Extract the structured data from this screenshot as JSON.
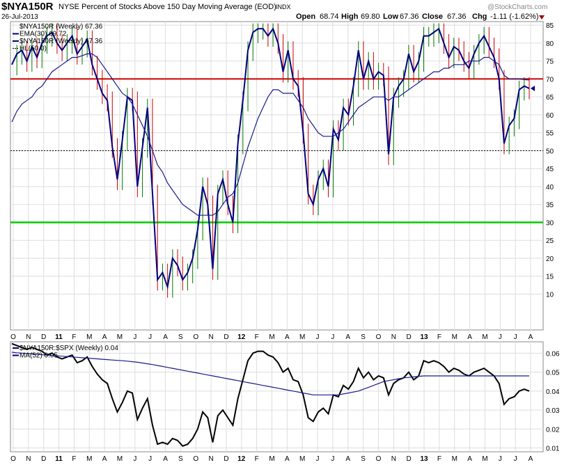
{
  "header": {
    "symbol": "$NYA150R",
    "description": "NYSE Percent of Stocks Above 150 Day Moving Average (EOD)",
    "exchange": "INDX",
    "date": "26-Jul-2013",
    "open_label": "Open",
    "open": "68.74",
    "high_label": "High",
    "high": "69.80",
    "low_label": "Low",
    "low": "67.36",
    "close_label": "Close",
    "close": "67.36",
    "chg_label": "Chg",
    "chg": "-1.11 (-1.62%)",
    "watermark": "@StockCharts.com"
  },
  "colors": {
    "price": "#000080",
    "ema": "#1a1a8c",
    "down_bar": "#cc0000",
    "up_bar": "#007700",
    "hline_red": "#cc0000",
    "hline_green": "#00cc00",
    "grid": "#dddddd",
    "ratio": "#000000"
  },
  "chart_data": [
    {
      "type": "line",
      "legend": [
        {
          "label": "$NYA150R (Weekly) 67.36",
          "style": "none"
        },
        {
          "label": "EMA(30) 69.72",
          "style": "line"
        },
        {
          "label": "$NYA150R (Weekly) 67.36",
          "style": "line"
        },
        {
          "label": "HL(50.0)",
          "style": "dotted"
        }
      ],
      "ylim": [
        0,
        86
      ],
      "yticks": [
        10,
        15,
        20,
        25,
        30,
        35,
        40,
        45,
        50,
        55,
        60,
        65,
        70,
        75,
        80,
        85
      ],
      "xlabels": [
        "O",
        "N",
        "D",
        "11",
        "F",
        "M",
        "A",
        "M",
        "J",
        "J",
        "A",
        "S",
        "O",
        "N",
        "D",
        "12",
        "F",
        "M",
        "A",
        "M",
        "J",
        "J",
        "A",
        "S",
        "O",
        "N",
        "D",
        "13",
        "F",
        "M",
        "A",
        "M",
        "J",
        "J",
        "A"
      ],
      "hlines": [
        {
          "value": 70,
          "color": "red"
        },
        {
          "value": 30,
          "color": "green"
        },
        {
          "value": 50,
          "color": "black-dotted"
        }
      ],
      "series": [
        {
          "name": "$NYA150R (Weekly)",
          "values": [
            74,
            77,
            78,
            75,
            79,
            76,
            80,
            82,
            83,
            80,
            78,
            80,
            82,
            77,
            79,
            81,
            74,
            70,
            66,
            64,
            51,
            42,
            53,
            65,
            64,
            40,
            51,
            62,
            38,
            14,
            16,
            12,
            20,
            18,
            14,
            16,
            20,
            28,
            40,
            35,
            17,
            38,
            42,
            35,
            30,
            52,
            64,
            78,
            83,
            84,
            84,
            82,
            84,
            80,
            72,
            78,
            70,
            68,
            55,
            38,
            35,
            42,
            45,
            40,
            56,
            53,
            62,
            60,
            68,
            78,
            70,
            75,
            70,
            72,
            71,
            49,
            65,
            68,
            70,
            77,
            72,
            75,
            82,
            82,
            83,
            84,
            80,
            76,
            79,
            78,
            75,
            73,
            77,
            80,
            82,
            79,
            76,
            70,
            52,
            57,
            59,
            67,
            68,
            67.36
          ]
        },
        {
          "name": "EMA(30)",
          "values": [
            58,
            61,
            63,
            64,
            65,
            67,
            68,
            70,
            72,
            73,
            74,
            75,
            76,
            76,
            76.5,
            77,
            77,
            76,
            74,
            72,
            70,
            68,
            66,
            65,
            63,
            60,
            57,
            54,
            50,
            46,
            44,
            41,
            39,
            37,
            35,
            34,
            33,
            32,
            32,
            32,
            32,
            33,
            35,
            37,
            38,
            41,
            46,
            51,
            55,
            59,
            62,
            65,
            67,
            67,
            66,
            66,
            66,
            64,
            62,
            59,
            57,
            55,
            54,
            54,
            54,
            55,
            56,
            58,
            60,
            62,
            63,
            64,
            65,
            65,
            65,
            64,
            65,
            65,
            66,
            67,
            68,
            69,
            70,
            71,
            72,
            72,
            73,
            73,
            74,
            74,
            74,
            75,
            75,
            75,
            76,
            76,
            75,
            74,
            71,
            70,
            70,
            70,
            69.8,
            69.72
          ]
        }
      ]
    },
    {
      "type": "line",
      "legend": [
        {
          "label": "$NYA150R:$SPX (Weekly) 0.04",
          "style": "line"
        },
        {
          "label": "MA(52) 0.05",
          "style": "line"
        }
      ],
      "ylim": [
        0.008,
        0.066
      ],
      "yticks": [
        "0.01",
        "0.02",
        "0.03",
        "0.04",
        "0.05",
        "0.06"
      ],
      "xlabels": [
        "O",
        "N",
        "D",
        "11",
        "F",
        "M",
        "A",
        "M",
        "J",
        "J",
        "A",
        "S",
        "O",
        "N",
        "D",
        "12",
        "F",
        "M",
        "A",
        "M",
        "J",
        "J",
        "A",
        "S",
        "O",
        "N",
        "D",
        "13",
        "F",
        "M",
        "A",
        "M",
        "J",
        "J",
        "A"
      ],
      "series": [
        {
          "name": "$NYA150R:$SPX (Weekly)",
          "values": [
            0.065,
            0.064,
            0.063,
            0.062,
            0.063,
            0.062,
            0.061,
            0.059,
            0.06,
            0.058,
            0.057,
            0.058,
            0.059,
            0.055,
            0.056,
            0.058,
            0.053,
            0.049,
            0.046,
            0.044,
            0.036,
            0.029,
            0.034,
            0.04,
            0.039,
            0.025,
            0.031,
            0.036,
            0.022,
            0.012,
            0.013,
            0.012,
            0.015,
            0.014,
            0.011,
            0.012,
            0.015,
            0.02,
            0.029,
            0.026,
            0.013,
            0.027,
            0.03,
            0.026,
            0.022,
            0.036,
            0.046,
            0.056,
            0.06,
            0.061,
            0.061,
            0.059,
            0.058,
            0.055,
            0.05,
            0.052,
            0.046,
            0.045,
            0.038,
            0.026,
            0.024,
            0.029,
            0.031,
            0.028,
            0.038,
            0.037,
            0.043,
            0.041,
            0.045,
            0.052,
            0.047,
            0.05,
            0.046,
            0.048,
            0.047,
            0.038,
            0.044,
            0.046,
            0.047,
            0.05,
            0.046,
            0.048,
            0.056,
            0.055,
            0.056,
            0.055,
            0.053,
            0.05,
            0.052,
            0.051,
            0.049,
            0.048,
            0.05,
            0.051,
            0.052,
            0.05,
            0.048,
            0.044,
            0.033,
            0.036,
            0.037,
            0.04,
            0.041,
            0.04
          ]
        },
        {
          "name": "MA(52)",
          "values": [
            0.0605,
            0.0602,
            0.06,
            0.0598,
            0.0596,
            0.0594,
            0.0592,
            0.059,
            0.0588,
            0.0586,
            0.0584,
            0.0582,
            0.058,
            0.0578,
            0.0576,
            0.0574,
            0.0572,
            0.057,
            0.0568,
            0.0566,
            0.0564,
            0.0562,
            0.056,
            0.0558,
            0.0555,
            0.0552,
            0.0548,
            0.0544,
            0.054,
            0.0535,
            0.053,
            0.0525,
            0.052,
            0.0515,
            0.051,
            0.0505,
            0.05,
            0.0495,
            0.049,
            0.0485,
            0.048,
            0.0475,
            0.047,
            0.0465,
            0.046,
            0.0455,
            0.045,
            0.0445,
            0.044,
            0.0435,
            0.043,
            0.0425,
            0.042,
            0.0415,
            0.041,
            0.0405,
            0.04,
            0.0395,
            0.039,
            0.0385,
            0.038,
            0.038,
            0.038,
            0.038,
            0.038,
            0.038,
            0.0385,
            0.039,
            0.0395,
            0.04,
            0.041,
            0.042,
            0.043,
            0.044,
            0.045,
            0.0455,
            0.046,
            0.0465,
            0.047,
            0.0472,
            0.0475,
            0.0478,
            0.048,
            0.048,
            0.048,
            0.048,
            0.048,
            0.048,
            0.048,
            0.048,
            0.048,
            0.048,
            0.048,
            0.048,
            0.048,
            0.048,
            0.048,
            0.048,
            0.048,
            0.048,
            0.048,
            0.048,
            0.048,
            0.048
          ]
        }
      ]
    }
  ]
}
